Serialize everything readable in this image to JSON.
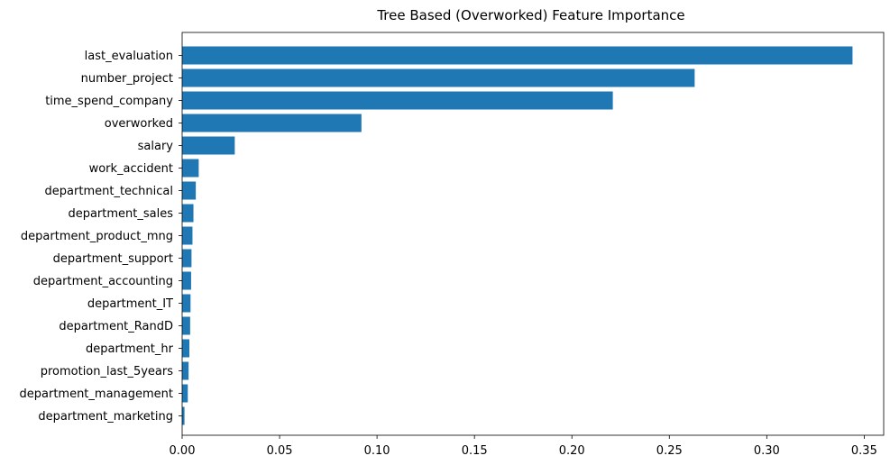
{
  "chart_data": {
    "type": "bar",
    "orientation": "horizontal",
    "title": "Tree Based (Overworked) Feature Importance",
    "xlabel": "",
    "ylabel": "",
    "xlim": [
      0,
      0.36
    ],
    "xticks": [
      "0.00",
      "0.05",
      "0.10",
      "0.15",
      "0.20",
      "0.25",
      "0.30",
      "0.35"
    ],
    "grid": false,
    "bar_color": "#1f77b4",
    "categories": [
      "last_evaluation",
      "number_project",
      "time_spend_company",
      "overworked",
      "salary",
      "work_accident",
      "department_technical",
      "department_sales",
      "department_product_mng",
      "department_support",
      "department_accounting",
      "department_IT",
      "department_RandD",
      "department_hr",
      "promotion_last_5years",
      "department_management",
      "department_marketing"
    ],
    "values": [
      0.344,
      0.263,
      0.221,
      0.092,
      0.027,
      0.0085,
      0.007,
      0.0058,
      0.0053,
      0.0048,
      0.0046,
      0.0043,
      0.0041,
      0.0037,
      0.0033,
      0.0029,
      0.0012
    ]
  }
}
